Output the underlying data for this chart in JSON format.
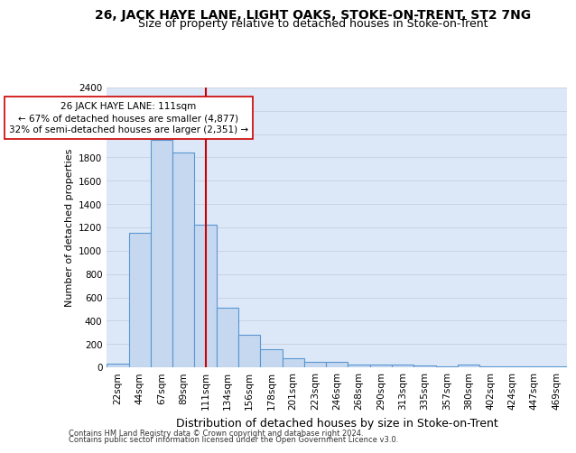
{
  "title": "26, JACK HAYE LANE, LIGHT OAKS, STOKE-ON-TRENT, ST2 7NG",
  "subtitle": "Size of property relative to detached houses in Stoke-on-Trent",
  "xlabel": "Distribution of detached houses by size in Stoke-on-Trent",
  "ylabel": "Number of detached properties",
  "bar_labels": [
    "22sqm",
    "44sqm",
    "67sqm",
    "89sqm",
    "111sqm",
    "134sqm",
    "156sqm",
    "178sqm",
    "201sqm",
    "223sqm",
    "246sqm",
    "268sqm",
    "290sqm",
    "313sqm",
    "335sqm",
    "357sqm",
    "380sqm",
    "402sqm",
    "424sqm",
    "447sqm",
    "469sqm"
  ],
  "bar_values": [
    30,
    1150,
    1950,
    1840,
    1220,
    510,
    275,
    155,
    80,
    50,
    45,
    20,
    20,
    20,
    15,
    10,
    20,
    5,
    5,
    5,
    5
  ],
  "bar_color": "#c5d8f0",
  "bar_edge_color": "#5a96d0",
  "highlight_index": 4,
  "highlight_color": "#cc0000",
  "annotation_line1": "26 JACK HAYE LANE: 111sqm",
  "annotation_line2": "← 67% of detached houses are smaller (4,877)",
  "annotation_line3": "32% of semi-detached houses are larger (2,351) →",
  "annotation_box_color": "#ffffff",
  "annotation_box_edge": "#cc0000",
  "ylim": [
    0,
    2400
  ],
  "yticks": [
    0,
    200,
    400,
    600,
    800,
    1000,
    1200,
    1400,
    1600,
    1800,
    2000,
    2200,
    2400
  ],
  "grid_color": "#c8d0dc",
  "background_color": "#dce8f8",
  "footer_line1": "Contains HM Land Registry data © Crown copyright and database right 2024.",
  "footer_line2": "Contains public sector information licensed under the Open Government Licence v3.0.",
  "title_fontsize": 10,
  "subtitle_fontsize": 9,
  "xlabel_fontsize": 9,
  "ylabel_fontsize": 8,
  "tick_fontsize": 7.5,
  "annotation_fontsize": 7.5,
  "footer_fontsize": 6
}
